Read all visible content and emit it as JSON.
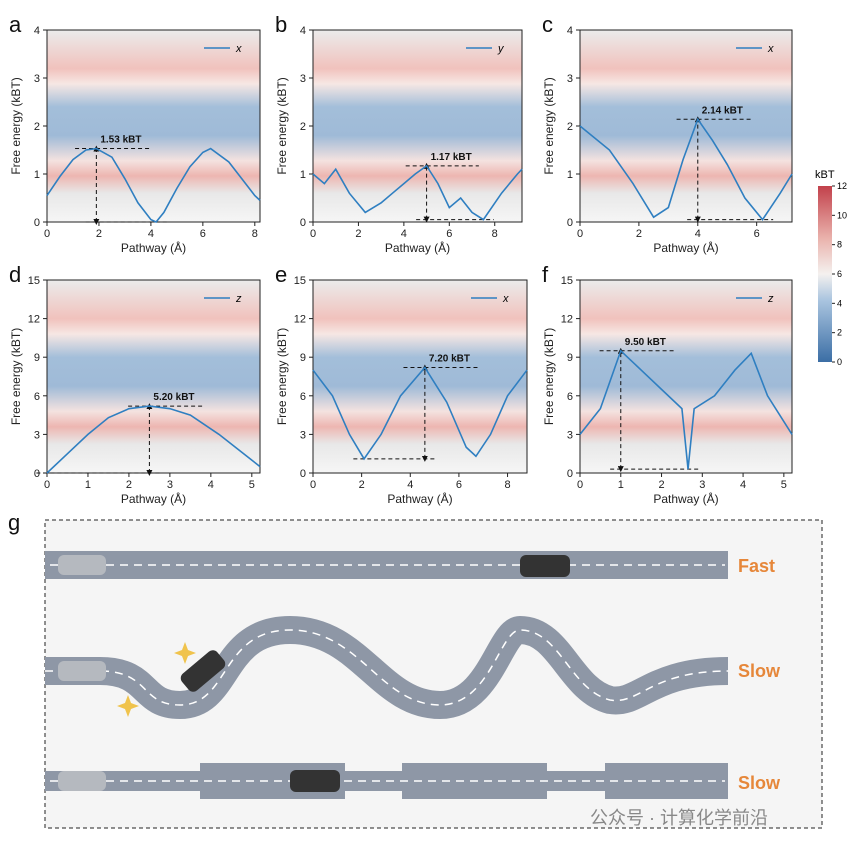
{
  "chart_data": [
    {
      "type": "line",
      "panel": "a",
      "xlabel": "Pathway (Å)",
      "ylabel": "Free energy (kBT)",
      "annotation": "1.53 kBT",
      "xlim": [
        0,
        8.2
      ],
      "xticks": [
        0,
        2,
        4,
        6,
        8
      ],
      "ylim": [
        0,
        4
      ],
      "yticks": [
        0,
        1,
        2,
        3,
        4
      ],
      "x": [
        0,
        0.5,
        1,
        1.5,
        1.9,
        2.5,
        3,
        3.5,
        4,
        4.2,
        4.5,
        5,
        5.5,
        6,
        6.3,
        7,
        7.5,
        8,
        8.2
      ],
      "series": [
        {
          "name": "x",
          "color": "#2f7fc1",
          "values": [
            0.55,
            0.95,
            1.3,
            1.5,
            1.53,
            1.35,
            0.9,
            0.4,
            0.05,
            0,
            0.2,
            0.7,
            1.15,
            1.45,
            1.53,
            1.25,
            0.9,
            0.55,
            0.45
          ]
        }
      ]
    },
    {
      "type": "line",
      "panel": "b",
      "xlabel": "Pathway (Å)",
      "ylabel": "Free energy (kBT)",
      "annotation": "1.17 kBT",
      "xlim": [
        0,
        9.2
      ],
      "xticks": [
        0,
        2,
        4,
        6,
        8
      ],
      "ylim": [
        0,
        4
      ],
      "yticks": [
        0,
        1,
        2,
        3,
        4
      ],
      "x": [
        0,
        0.5,
        1,
        1.6,
        2.3,
        3,
        3.5,
        4,
        4.5,
        5,
        5.5,
        6,
        6.5,
        7,
        7.5,
        8.3,
        9,
        9.2
      ],
      "series": [
        {
          "name": "y",
          "color": "#2f7fc1",
          "values": [
            1.0,
            0.8,
            1.1,
            0.6,
            0.2,
            0.4,
            0.6,
            0.8,
            1.0,
            1.17,
            0.8,
            0.3,
            0.5,
            0.2,
            0.05,
            0.6,
            1.0,
            1.1
          ]
        }
      ]
    },
    {
      "type": "line",
      "panel": "c",
      "xlabel": "Pathway (Å)",
      "ylabel": "Free energy (kBT)",
      "annotation": "2.14 kBT",
      "xlim": [
        0,
        7.2
      ],
      "xticks": [
        0,
        2,
        4,
        6
      ],
      "ylim": [
        0,
        4
      ],
      "yticks": [
        0,
        1,
        2,
        3,
        4
      ],
      "x": [
        0,
        1,
        1.8,
        2.5,
        3,
        3.5,
        4,
        4.5,
        5,
        5.6,
        6.2,
        6.8,
        7.2
      ],
      "series": [
        {
          "name": "x",
          "color": "#2f7fc1",
          "values": [
            2.0,
            1.5,
            0.8,
            0.1,
            0.3,
            1.3,
            2.14,
            1.7,
            1.2,
            0.5,
            0.05,
            0.6,
            1.0
          ]
        }
      ]
    },
    {
      "type": "line",
      "panel": "d",
      "xlabel": "Pathway (Å)",
      "ylabel": "Free energy (kBT)",
      "annotation": "5.20 kBT",
      "xlim": [
        0,
        5.2
      ],
      "xticks": [
        0,
        1,
        2,
        3,
        4,
        5
      ],
      "ylim": [
        0,
        15
      ],
      "yticks": [
        0,
        3,
        6,
        9,
        12,
        15
      ],
      "x": [
        0,
        0.5,
        1,
        1.5,
        2,
        2.5,
        3,
        3.5,
        4.2,
        5,
        5.2
      ],
      "series": [
        {
          "name": "z",
          "color": "#2f7fc1",
          "values": [
            0,
            1.5,
            3,
            4.3,
            5,
            5.2,
            5,
            4.5,
            3,
            1,
            0.5
          ]
        }
      ]
    },
    {
      "type": "line",
      "panel": "e",
      "xlabel": "Pathway (Å)",
      "ylabel": "Free energy (kBT)",
      "annotation": "7.20 kBT",
      "xlim": [
        0,
        8.8
      ],
      "xticks": [
        0,
        2,
        4,
        6,
        8
      ],
      "ylim": [
        0,
        15
      ],
      "yticks": [
        0,
        3,
        6,
        9,
        12,
        15
      ],
      "x": [
        0,
        0.8,
        1.5,
        2.1,
        2.8,
        3.6,
        4.6,
        5.5,
        6.3,
        6.7,
        7.3,
        8,
        8.8
      ],
      "series": [
        {
          "name": "x",
          "color": "#2f7fc1",
          "values": [
            8.0,
            6,
            3,
            1.1,
            3,
            6,
            8.2,
            5.5,
            2,
            1.3,
            3,
            6,
            8
          ]
        }
      ]
    },
    {
      "type": "line",
      "panel": "f",
      "xlabel": "Pathway (Å)",
      "ylabel": "Free energy (kBT)",
      "annotation": "9.50 kBT",
      "xlim": [
        0,
        5.2
      ],
      "xticks": [
        0,
        1,
        2,
        3,
        4,
        5
      ],
      "ylim": [
        0,
        15
      ],
      "yticks": [
        0,
        3,
        6,
        9,
        12,
        15
      ],
      "x": [
        0,
        0.5,
        1,
        1.5,
        2,
        2.5,
        2.65,
        2.8,
        3.3,
        3.8,
        4.2,
        4.6,
        5.2
      ],
      "series": [
        {
          "name": "z",
          "color": "#2f7fc1",
          "values": [
            3,
            5,
            9.5,
            8,
            6.5,
            5,
            0.3,
            5,
            6,
            8,
            9.3,
            6,
            3
          ]
        }
      ]
    }
  ],
  "colorbar": {
    "title": "kBT",
    "lim": [
      0,
      12
    ],
    "ticks": [
      0,
      2,
      4,
      6,
      8,
      10,
      12
    ]
  },
  "diagram": {
    "label": "g",
    "rows": [
      {
        "label": "Fast"
      },
      {
        "label": "Slow"
      },
      {
        "label": "Slow"
      }
    ]
  },
  "watermark": "公众号 · 计算化学前沿"
}
